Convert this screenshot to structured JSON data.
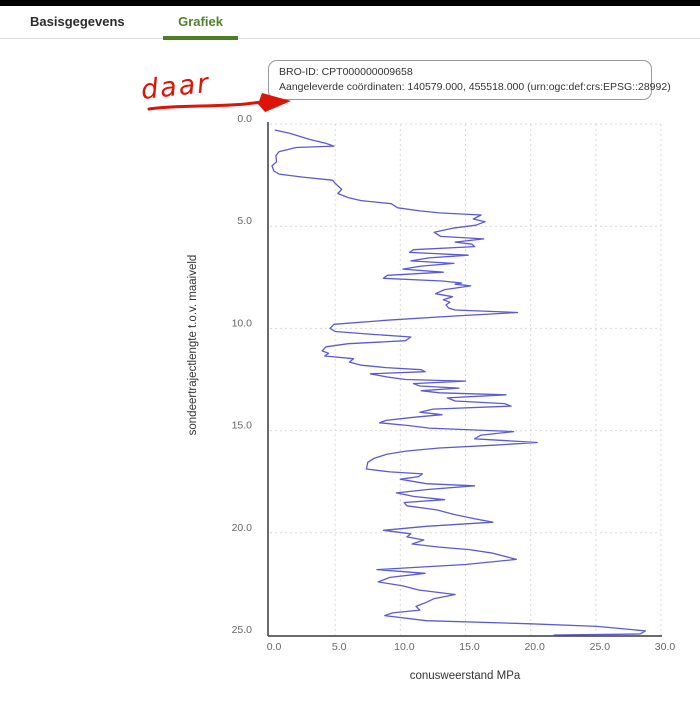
{
  "tabs": [
    {
      "label": "Basisgegevens",
      "active": false
    },
    {
      "label": "Grafiek",
      "active": true
    }
  ],
  "colors": {
    "tab_active_green": "#557f2d",
    "tab_underline_green": "#4e7d23",
    "line_blue": "#5a5ad6",
    "annotation_red": "#dd1408",
    "grid_gray": "#d9d9d9"
  },
  "info_box": {
    "bro_id_line": "BRO-ID: CPT000000009658",
    "coordinates_line": "Aangeleverde coördinaten: 140579.000, 455518.000 (urn:ogc:def:crs:EPSG::28992)"
  },
  "annotation": {
    "text": "daar"
  },
  "chart_data": {
    "type": "line",
    "title": "",
    "xlabel": "conusweerstand MPa",
    "ylabel": "sondeertrajectlengte t.o.v. maaiveld",
    "xlim": [
      0,
      30
    ],
    "ylim": [
      0,
      25
    ],
    "y_axis_inverted": true,
    "grid": true,
    "legend": "none",
    "x_ticks": [
      "0.0",
      "5.0",
      "10.0",
      "15.0",
      "20.0",
      "25.0",
      "30.0"
    ],
    "y_ticks": [
      "0.0",
      "5.0",
      "10.0",
      "15.0",
      "20.0",
      "25.0"
    ],
    "series": [
      {
        "name": "conusweerstand",
        "color": "#5a5ad6",
        "points": [
          [
            0.4,
            0.3
          ],
          [
            1.5,
            0.45
          ],
          [
            3.0,
            0.75
          ],
          [
            4.3,
            0.95
          ],
          [
            4.9,
            1.08
          ],
          [
            2.0,
            1.15
          ],
          [
            0.7,
            1.35
          ],
          [
            0.45,
            1.55
          ],
          [
            0.5,
            1.85
          ],
          [
            0.15,
            2.05
          ],
          [
            0.3,
            2.3
          ],
          [
            0.7,
            2.45
          ],
          [
            2.5,
            2.6
          ],
          [
            4.8,
            2.75
          ],
          [
            5.0,
            2.9
          ],
          [
            5.5,
            3.2
          ],
          [
            5.2,
            3.4
          ],
          [
            6.0,
            3.6
          ],
          [
            7.0,
            3.75
          ],
          [
            9.3,
            3.9
          ],
          [
            9.8,
            4.1
          ],
          [
            11.5,
            4.25
          ],
          [
            13.0,
            4.35
          ],
          [
            16.2,
            4.45
          ],
          [
            15.6,
            4.65
          ],
          [
            16.5,
            4.78
          ],
          [
            15.8,
            4.95
          ],
          [
            14.0,
            5.1
          ],
          [
            12.6,
            5.3
          ],
          [
            13.1,
            5.5
          ],
          [
            16.4,
            5.62
          ],
          [
            14.2,
            5.78
          ],
          [
            15.5,
            5.88
          ],
          [
            15.7,
            6.0
          ],
          [
            11.0,
            6.15
          ],
          [
            10.7,
            6.28
          ],
          [
            15.2,
            6.42
          ],
          [
            12.2,
            6.55
          ],
          [
            10.8,
            6.7
          ],
          [
            14.1,
            6.82
          ],
          [
            11.6,
            6.95
          ],
          [
            10.2,
            7.1
          ],
          [
            13.3,
            7.25
          ],
          [
            9.0,
            7.4
          ],
          [
            8.7,
            7.55
          ],
          [
            13.2,
            7.68
          ],
          [
            14.7,
            7.78
          ],
          [
            14.2,
            7.84
          ],
          [
            15.4,
            7.92
          ],
          [
            13.4,
            8.1
          ],
          [
            12.7,
            8.3
          ],
          [
            14.0,
            8.45
          ],
          [
            13.3,
            8.6
          ],
          [
            13.8,
            8.72
          ],
          [
            13.5,
            8.85
          ],
          [
            13.7,
            9.0
          ],
          [
            14.2,
            9.1
          ],
          [
            19.0,
            9.22
          ],
          [
            14.0,
            9.4
          ],
          [
            9.0,
            9.6
          ],
          [
            4.9,
            9.8
          ],
          [
            4.6,
            10.0
          ],
          [
            5.0,
            10.15
          ],
          [
            8.0,
            10.3
          ],
          [
            10.8,
            10.42
          ],
          [
            10.4,
            10.6
          ],
          [
            6.0,
            10.75
          ],
          [
            4.3,
            10.9
          ],
          [
            4.0,
            11.1
          ],
          [
            4.5,
            11.22
          ],
          [
            4.2,
            11.35
          ],
          [
            6.4,
            11.48
          ],
          [
            6.1,
            11.65
          ],
          [
            7.0,
            11.8
          ],
          [
            8.9,
            11.92
          ],
          [
            11.6,
            12.02
          ],
          [
            11.9,
            12.12
          ],
          [
            7.7,
            12.22
          ],
          [
            9.0,
            12.38
          ],
          [
            10.4,
            12.5
          ],
          [
            15.0,
            12.58
          ],
          [
            11.0,
            12.7
          ],
          [
            11.5,
            12.82
          ],
          [
            14.5,
            12.92
          ],
          [
            11.6,
            13.05
          ],
          [
            13.0,
            13.15
          ],
          [
            18.1,
            13.25
          ],
          [
            13.6,
            13.4
          ],
          [
            14.2,
            13.55
          ],
          [
            18.0,
            13.68
          ],
          [
            18.5,
            13.8
          ],
          [
            12.5,
            13.95
          ],
          [
            11.5,
            14.1
          ],
          [
            13.2,
            14.22
          ],
          [
            11.0,
            14.35
          ],
          [
            8.9,
            14.5
          ],
          [
            8.4,
            14.62
          ],
          [
            10.6,
            14.75
          ],
          [
            12.2,
            14.88
          ],
          [
            18.7,
            15.05
          ],
          [
            16.2,
            15.22
          ],
          [
            15.7,
            15.4
          ],
          [
            20.5,
            15.58
          ],
          [
            17.0,
            15.72
          ],
          [
            13.0,
            15.85
          ],
          [
            10.5,
            16.0
          ],
          [
            9.0,
            16.15
          ],
          [
            8.0,
            16.35
          ],
          [
            7.5,
            16.55
          ],
          [
            7.4,
            16.88
          ],
          [
            9.2,
            17.02
          ],
          [
            11.7,
            17.12
          ],
          [
            11.4,
            17.25
          ],
          [
            10.0,
            17.38
          ],
          [
            11.1,
            17.5
          ],
          [
            12.0,
            17.6
          ],
          [
            15.7,
            17.7
          ],
          [
            12.1,
            17.88
          ],
          [
            9.7,
            18.05
          ],
          [
            11.0,
            18.22
          ],
          [
            13.4,
            18.38
          ],
          [
            10.3,
            18.52
          ],
          [
            10.5,
            18.68
          ],
          [
            12.8,
            18.88
          ],
          [
            14.1,
            19.1
          ],
          [
            15.6,
            19.3
          ],
          [
            17.1,
            19.48
          ],
          [
            12.0,
            19.68
          ],
          [
            8.7,
            19.88
          ],
          [
            10.8,
            20.05
          ],
          [
            10.5,
            20.2
          ],
          [
            11.8,
            20.35
          ],
          [
            10.9,
            20.55
          ],
          [
            13.0,
            20.7
          ],
          [
            15.3,
            20.82
          ],
          [
            17.1,
            21.0
          ],
          [
            18.9,
            21.3
          ],
          [
            15.0,
            21.55
          ],
          [
            8.2,
            21.8
          ],
          [
            11.9,
            21.98
          ],
          [
            9.2,
            22.18
          ],
          [
            8.3,
            22.4
          ],
          [
            10.2,
            22.6
          ],
          [
            11.4,
            22.8
          ],
          [
            14.2,
            23.02
          ],
          [
            12.6,
            23.22
          ],
          [
            12.0,
            23.4
          ],
          [
            11.2,
            23.6
          ],
          [
            11.5,
            23.78
          ],
          [
            9.4,
            23.92
          ],
          [
            8.8,
            24.05
          ],
          [
            12.0,
            24.3
          ],
          [
            20.0,
            24.45
          ],
          [
            25.1,
            24.58
          ],
          [
            28.8,
            24.8
          ],
          [
            28.4,
            24.95
          ],
          [
            21.8,
            25.0
          ]
        ]
      }
    ]
  }
}
